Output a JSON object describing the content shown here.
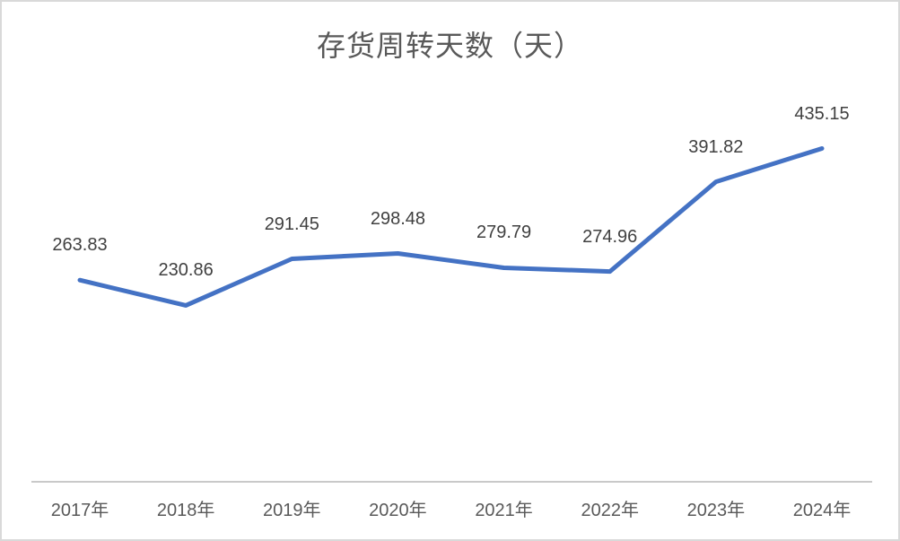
{
  "chart_data": {
    "type": "line",
    "title": "存货周转天数（天）",
    "categories": [
      "2017年",
      "2018年",
      "2019年",
      "2020年",
      "2021年",
      "2022年",
      "2023年",
      "2024年"
    ],
    "values": [
      263.83,
      230.86,
      291.45,
      298.48,
      279.79,
      274.96,
      391.82,
      435.15
    ],
    "data_labels": [
      "263.83",
      "230.86",
      "291.45",
      "298.48",
      "279.79",
      "274.96",
      "391.82",
      "435.15"
    ],
    "ylim": [
      0,
      500
    ],
    "grid": false,
    "legend": "none",
    "xlabel": "",
    "ylabel": "",
    "colors": {
      "line": "#4472C4",
      "title_text": "#595959",
      "data_label_text": "#404040",
      "axis_tick_text": "#595959",
      "axis_line": "#c9c9c9",
      "canvas_border": "#d9d9d9",
      "background": "#ffffff"
    }
  }
}
